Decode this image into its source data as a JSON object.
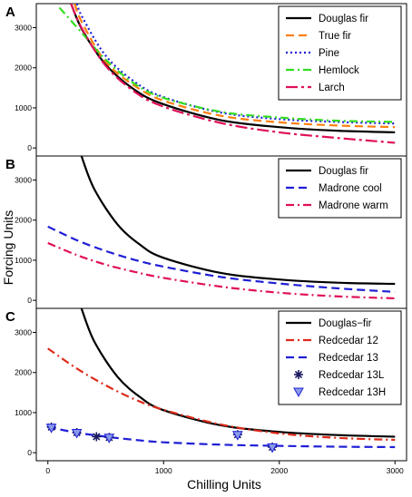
{
  "xlabel": "Chilling Units",
  "ylabel": "Forcing Units",
  "colors": {
    "black": "#000000",
    "orange": "#ff7f0e",
    "blue": "#1f1fd6",
    "green": "#33dd22",
    "magenta": "#e0105a",
    "red": "#dd2a1a"
  },
  "chart_data": [
    {
      "type": "line",
      "panel_label": "A",
      "xlim": [
        -100,
        3100
      ],
      "ylim": [
        -200,
        3600
      ],
      "x_ticks": [],
      "y_ticks": [
        0,
        1000,
        2000,
        3000
      ],
      "legend_position": "top-right",
      "series": [
        {
          "name": "Douglas fir",
          "style": "solid",
          "color": "#000000",
          "x": [
            200,
            300,
            500,
            750,
            1000,
            1500,
            2000,
            2500,
            3000
          ],
          "y": [
            3600,
            2930,
            2080,
            1450,
            1090,
            690,
            520,
            430,
            390
          ]
        },
        {
          "name": "True fir",
          "style": "dashed",
          "color": "#ff7f0e",
          "x": [
            230,
            300,
            500,
            750,
            1000,
            1500,
            2000,
            2500,
            3000
          ],
          "y": [
            3600,
            3100,
            2150,
            1550,
            1180,
            800,
            640,
            560,
            520
          ]
        },
        {
          "name": "Pine",
          "style": "dotted",
          "color": "#1f1fd6",
          "x": [
            250,
            300,
            500,
            750,
            1000,
            1500,
            2000,
            2500,
            3000
          ],
          "y": [
            3600,
            3250,
            2300,
            1650,
            1270,
            880,
            720,
            650,
            610
          ]
        },
        {
          "name": "Hemlock",
          "style": "dashdot",
          "color": "#33dd22",
          "x": [
            100,
            300,
            500,
            750,
            1000,
            1500,
            2000,
            2500,
            3000
          ],
          "y": [
            3500,
            2850,
            2200,
            1600,
            1250,
            900,
            760,
            680,
            650
          ]
        },
        {
          "name": "Larch",
          "style": "longdashdot",
          "color": "#e0105a",
          "x": [
            200,
            300,
            500,
            750,
            1000,
            1500,
            2000,
            2500,
            3000
          ],
          "y": [
            3600,
            2950,
            2050,
            1400,
            1030,
            620,
            390,
            250,
            130
          ]
        }
      ]
    },
    {
      "type": "line",
      "panel_label": "B",
      "xlim": [
        -100,
        3100
      ],
      "ylim": [
        -200,
        3600
      ],
      "x_ticks": [],
      "y_ticks": [
        0,
        1000,
        2000,
        3000
      ],
      "legend_position": "top-right",
      "series": [
        {
          "name": "Douglas fir",
          "style": "solid",
          "color": "#000000",
          "x": [
            290,
            400,
            600,
            800,
            1000,
            1500,
            2000,
            2500,
            3000
          ],
          "y": [
            3600,
            2780,
            1900,
            1380,
            1060,
            680,
            520,
            440,
            410
          ]
        },
        {
          "name": "Madrone cool",
          "style": "dashed",
          "color": "#1f1fd6",
          "x": [
            0,
            250,
            500,
            750,
            1000,
            1500,
            2000,
            2500,
            3000
          ],
          "y": [
            1840,
            1500,
            1230,
            1010,
            840,
            580,
            420,
            300,
            210
          ]
        },
        {
          "name": "Madrone warm",
          "style": "dashdot",
          "color": "#e0105a",
          "x": [
            0,
            250,
            500,
            750,
            1000,
            1500,
            2000,
            2500,
            3000
          ],
          "y": [
            1430,
            1130,
            890,
            710,
            560,
            340,
            190,
            100,
            50
          ]
        }
      ]
    },
    {
      "type": "line",
      "panel_label": "C",
      "xlim": [
        -100,
        3100
      ],
      "ylim": [
        -200,
        3600
      ],
      "x_ticks": [
        0,
        1000,
        2000,
        3000
      ],
      "y_ticks": [
        0,
        1000,
        2000,
        3000
      ],
      "legend_position": "top-right",
      "series": [
        {
          "name": "Douglas−fir",
          "style": "solid",
          "color": "#000000",
          "x": [
            290,
            400,
            600,
            800,
            1000,
            1500,
            2000,
            2500,
            3000
          ],
          "y": [
            3600,
            2780,
            1900,
            1380,
            1060,
            680,
            520,
            440,
            400
          ]
        },
        {
          "name": "Redcedar 12",
          "style": "dashdot",
          "color": "#dd2a1a",
          "x": [
            0,
            250,
            500,
            750,
            1000,
            1500,
            2000,
            2500,
            3000
          ],
          "y": [
            2600,
            2100,
            1680,
            1330,
            1070,
            700,
            480,
            370,
            320
          ]
        },
        {
          "name": "Redcedar 13",
          "style": "dashed",
          "color": "#1f1fd6",
          "x": [
            0,
            250,
            500,
            750,
            1000,
            1500,
            2000,
            2500,
            3000
          ],
          "y": [
            640,
            500,
            400,
            320,
            260,
            200,
            170,
            150,
            140
          ]
        },
        {
          "name": "Redcedar 13L",
          "type": "scatter",
          "marker": "asterisk",
          "color": "#1f1fd6",
          "x": [
            30,
            250,
            420,
            530,
            1640,
            1940
          ],
          "y": [
            640,
            500,
            400,
            380,
            450,
            140
          ]
        },
        {
          "name": "Redcedar 13H",
          "type": "scatter",
          "marker": "triangle-down",
          "color": "#1f1fd6",
          "x": [
            30,
            250,
            530,
            1640,
            1940
          ],
          "y": [
            620,
            490,
            370,
            440,
            130
          ]
        }
      ]
    }
  ]
}
